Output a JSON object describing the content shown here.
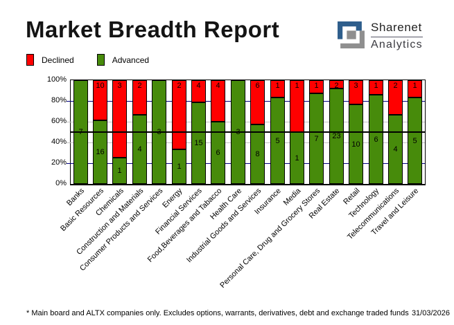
{
  "header": {
    "title": "Market Breadth Report",
    "logo": {
      "line1": "Sharenet",
      "line2": "Analytics",
      "blue": "#2E5E8C",
      "gray": "#8F8F8F"
    }
  },
  "legend": [
    {
      "label": "Declined",
      "color": "#FF0000"
    },
    {
      "label": "Advanced",
      "color": "#478B0B"
    }
  ],
  "chart_data": {
    "type": "bar",
    "stacked": true,
    "percent_stacked": true,
    "title": "Market Breadth Report",
    "categories": [
      "Banks",
      "Basic Resources",
      "Chemicals",
      "Construction and Materials",
      "Consumer Products and Services",
      "Energy",
      "Financial Services",
      "Food,Beverages and Tabacco",
      "Health Care",
      "Industrial Goods and Services",
      "Insurance",
      "Media",
      "Personal Care, Drug and Grocery Stores",
      "Real Estate",
      "Retail",
      "Technology",
      "Telecommunications",
      "Travel and Leisure"
    ],
    "series": [
      {
        "name": "Declined",
        "color": "#FF0000",
        "values": [
          0,
          10,
          3,
          2,
          0,
          2,
          4,
          4,
          0,
          6,
          1,
          1,
          1,
          2,
          3,
          1,
          2,
          1
        ]
      },
      {
        "name": "Advanced",
        "color": "#478B0B",
        "values": [
          7,
          16,
          1,
          4,
          3,
          1,
          15,
          6,
          3,
          8,
          5,
          1,
          7,
          23,
          10,
          6,
          4,
          5
        ]
      }
    ],
    "y_axis": {
      "ticks": [
        "0%",
        "20%",
        "40%",
        "60%",
        "80%",
        "100%"
      ],
      "min": 0,
      "max": 100,
      "gridlines": [
        {
          "pct": 20,
          "color": "#000080"
        },
        {
          "pct": 40,
          "color": "#c0c0c0"
        },
        {
          "pct": 60,
          "color": "#c0c0c0"
        },
        {
          "pct": 80,
          "color": "#000080"
        }
      ],
      "reference_line_pct": 50
    },
    "legend_position": "top-left",
    "value_labels": "shown on segments"
  },
  "footer": {
    "note": "* Main board and ALTX companies only. Excludes options, warrants, derivatives, debt and exchange traded funds",
    "date": "31/03/2026"
  }
}
